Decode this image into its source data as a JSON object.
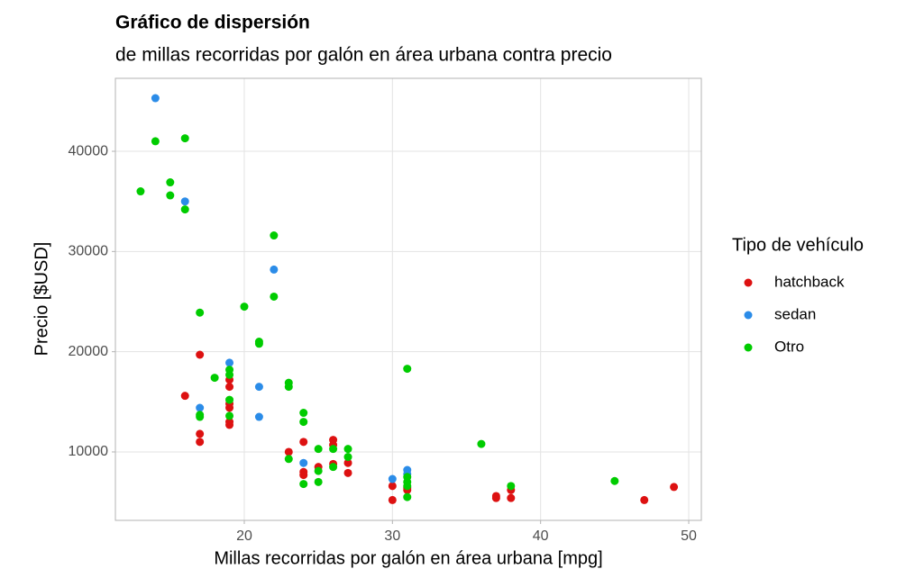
{
  "chart_data": {
    "type": "scatter",
    "title": "Gráfico de dispersión",
    "subtitle": "de millas recorridas por galón en área urbana contra precio",
    "x_label": "Millas recorridas por galón en área urbana [mpg]",
    "y_label": "Precio [$USD]",
    "legend_title": "Tipo de vehículo",
    "legend_position": "right",
    "grid": true,
    "xlim": [
      11.3,
      50.85
    ],
    "ylim": [
      3170,
      47280
    ],
    "xticks": [
      20,
      30,
      40,
      50
    ],
    "yticks": [
      10000,
      20000,
      30000,
      40000
    ],
    "series": [
      {
        "name": "hatchback",
        "color": "#dd1111",
        "x": [
          16,
          17,
          17,
          17,
          19,
          19,
          19,
          19,
          19,
          19,
          23,
          24,
          24,
          24,
          25,
          26,
          26,
          26,
          27,
          27,
          30,
          30,
          31,
          31,
          37,
          37,
          38,
          38,
          47,
          49
        ],
        "values": [
          15600,
          19700,
          11800,
          11000,
          17200,
          16500,
          14800,
          14400,
          13000,
          12700,
          10000,
          11000,
          8000,
          7700,
          8500,
          11200,
          10700,
          8800,
          8900,
          7900,
          6600,
          5200,
          6200,
          6400,
          5600,
          5400,
          5400,
          6200,
          5200,
          6500
        ]
      },
      {
        "name": "sedan",
        "color": "#2b8ce8",
        "x": [
          14,
          16,
          17,
          19,
          21,
          21,
          22,
          24,
          30,
          31,
          31
        ],
        "values": [
          45300,
          35000,
          14400,
          18900,
          16500,
          13500,
          28200,
          8900,
          7300,
          8200,
          7800
        ]
      },
      {
        "name": "Otro",
        "color": "#00cc00",
        "x": [
          13,
          14,
          15,
          15,
          16,
          16,
          17,
          17,
          17,
          18,
          19,
          19,
          19,
          19,
          20,
          21,
          21,
          22,
          22,
          23,
          23,
          23,
          24,
          24,
          24,
          25,
          25,
          25,
          26,
          26,
          27,
          27,
          31,
          31,
          31,
          31,
          31,
          36,
          38,
          45
        ],
        "values": [
          36000,
          41000,
          36900,
          35600,
          41300,
          34200,
          23900,
          13700,
          13500,
          17400,
          18200,
          17700,
          15200,
          13600,
          24500,
          21000,
          20800,
          31600,
          25500,
          16900,
          16500,
          9300,
          13900,
          13000,
          6800,
          10300,
          8100,
          7000,
          10300,
          8500,
          10300,
          9500,
          18300,
          7500,
          7000,
          6600,
          5500,
          10800,
          6600,
          7100
        ]
      }
    ]
  }
}
